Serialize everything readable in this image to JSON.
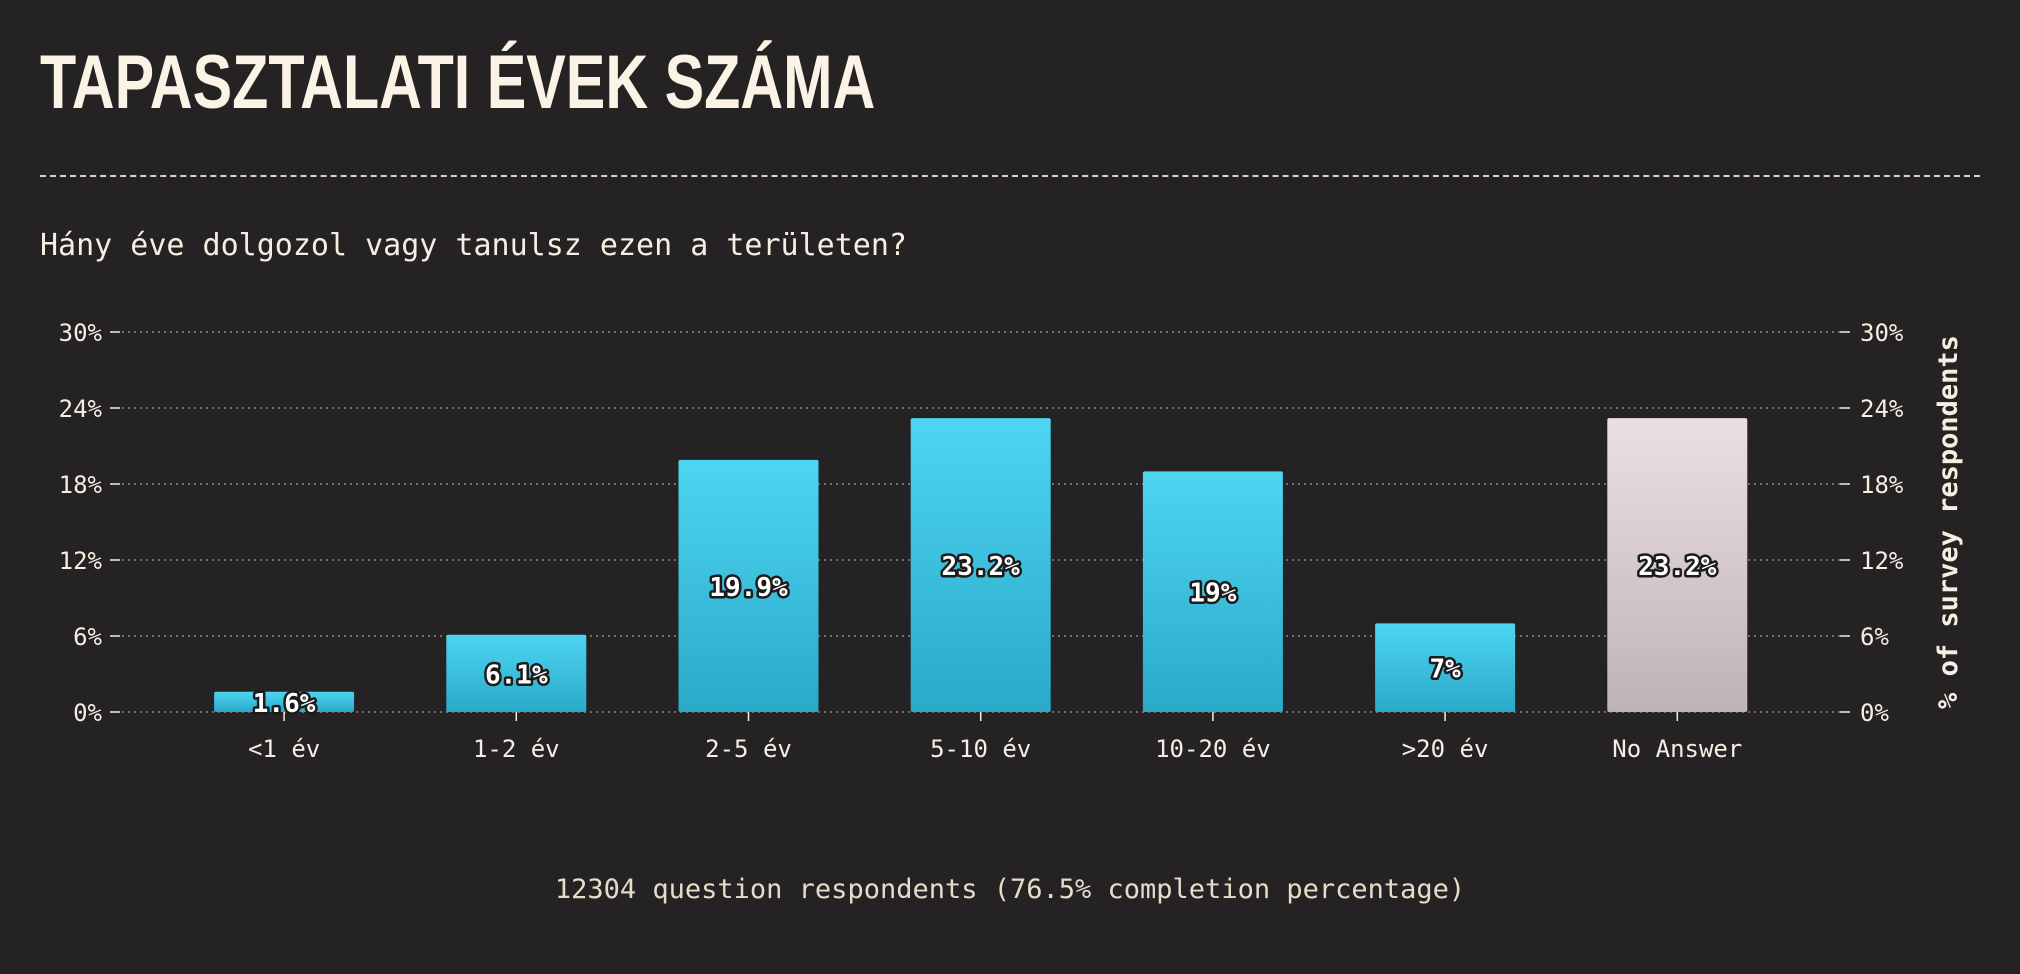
{
  "title": "TAPASZTALATI ÉVEK SZÁMA",
  "subtitle": "Hány éve dolgozol vagy tanulsz ezen a területen?",
  "footer": "12304 question respondents (76.5% completion percentage)",
  "chart_data": {
    "type": "bar",
    "categories": [
      "<1 év",
      "1-2 év",
      "2-5 év",
      "5-10 év",
      "10-20 év",
      ">20 év",
      "No Answer"
    ],
    "values": [
      1.6,
      6.1,
      19.9,
      23.2,
      19,
      7,
      23.2
    ],
    "data_labels": [
      "1.6%",
      "6.1%",
      "19.9%",
      "23.2%",
      "19%",
      "7%",
      "23.2%"
    ],
    "ylim": [
      0,
      30
    ],
    "yticks": [
      "0%",
      "6%",
      "12%",
      "18%",
      "24%",
      "30%"
    ],
    "ytick_values": [
      0,
      6,
      12,
      18,
      24,
      30
    ],
    "ylabel_right": "% of survey respondents",
    "grid": true,
    "colors": {
      "bar_top": "#4dd5f2",
      "bar_bottom": "#2aa9c8",
      "na_top": "#ecdfe3",
      "na_bottom": "#bfb3b6",
      "grid": "#8a8584",
      "text": "#f5eee2"
    }
  }
}
